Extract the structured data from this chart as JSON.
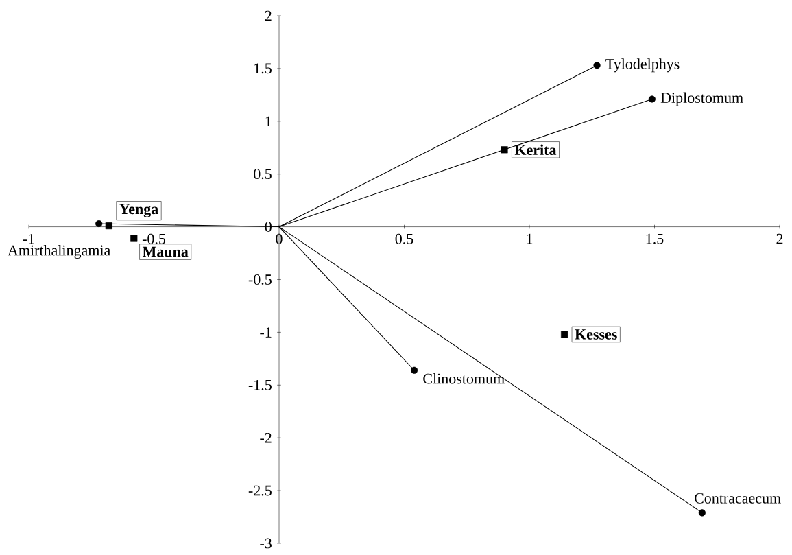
{
  "chart_data": {
    "type": "scatter",
    "xlim": [
      -1,
      2
    ],
    "ylim": [
      -3,
      2
    ],
    "xticks": [
      -1,
      -0.5,
      0,
      0.5,
      1,
      1.5,
      2
    ],
    "yticks": [
      -3,
      -2.5,
      -2,
      -1.5,
      -1,
      -0.5,
      0,
      0.5,
      1,
      1.5,
      2
    ],
    "series": [
      {
        "type": "line",
        "color": "#000000",
        "x": [
          0,
          1.27,
          0,
          1.49,
          0,
          0.54,
          0,
          1.69,
          0,
          -0.72
        ],
        "values": [
          0,
          1.53,
          0,
          1.21,
          0,
          -1.36,
          0,
          -2.71,
          0,
          0.03
        ]
      },
      {
        "marker": "circle",
        "color": "#000000",
        "x": [
          1.27,
          1.49,
          0.54,
          1.69,
          -0.72
        ],
        "values": [
          1.53,
          1.21,
          -1.36,
          -2.71,
          0.03
        ]
      },
      {
        "marker": "square",
        "color": "#000000",
        "x": [
          0.9,
          1.14,
          -0.68,
          -0.58
        ],
        "values": [
          0.73,
          -1.02,
          0.01,
          -0.11
        ]
      }
    ],
    "annotations": [
      {
        "text": "Tylodelphys",
        "x": 1.27,
        "y": 1.53
      },
      {
        "text": "Diplostomum",
        "x": 1.49,
        "y": 1.21
      },
      {
        "text": "Clinostomum",
        "x": 0.54,
        "y": -1.36
      },
      {
        "text": "Contracaecum",
        "x": 1.69,
        "y": -2.71
      },
      {
        "text": "Amirthalingamia",
        "x": -0.72,
        "y": 0.03
      },
      {
        "text": "Kerita",
        "x": 0.9,
        "y": 0.73
      },
      {
        "text": "Kesses",
        "x": 1.14,
        "y": -1.02
      },
      {
        "text": "Yenga",
        "x": -0.68,
        "y": 0.01
      },
      {
        "text": "Mauna",
        "x": -0.58,
        "y": -0.11
      }
    ]
  }
}
